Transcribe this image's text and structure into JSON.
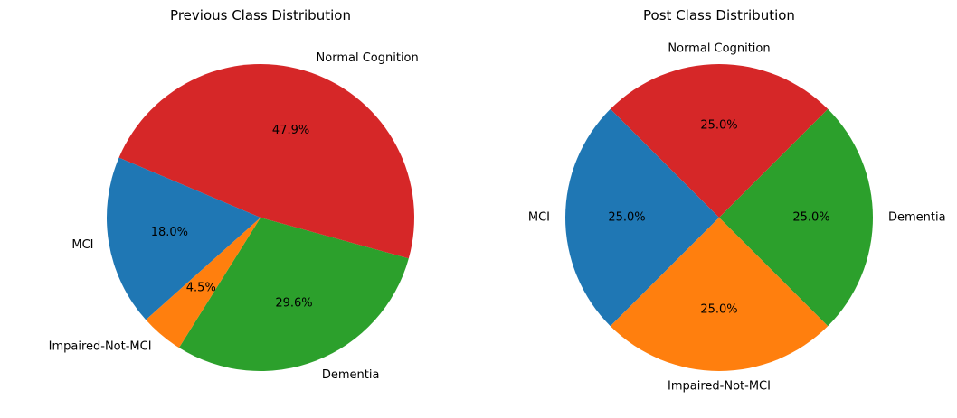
{
  "chart_data": [
    {
      "type": "pie",
      "title": "Previous Class Distribution",
      "labels": [
        "Dementia",
        "Normal Cognition",
        "MCI",
        "Impaired-Not-MCI"
      ],
      "values": [
        29.6,
        47.9,
        18.0,
        4.5
      ],
      "percent_labels": [
        "29.6%",
        "47.9%",
        "18.0%",
        "4.5%"
      ],
      "colors": [
        "#2ca02c",
        "#d62728",
        "#1f77b4",
        "#ff7f0e"
      ]
    },
    {
      "type": "pie",
      "title": "Post Class Distribution",
      "labels": [
        "Dementia",
        "Normal Cognition",
        "MCI",
        "Impaired-Not-MCI"
      ],
      "values": [
        25.0,
        25.0,
        25.0,
        25.0
      ],
      "percent_labels": [
        "25.0%",
        "25.0%",
        "25.0%",
        "25.0%"
      ],
      "colors": [
        "#2ca02c",
        "#d62728",
        "#1f77b4",
        "#ff7f0e"
      ]
    }
  ]
}
